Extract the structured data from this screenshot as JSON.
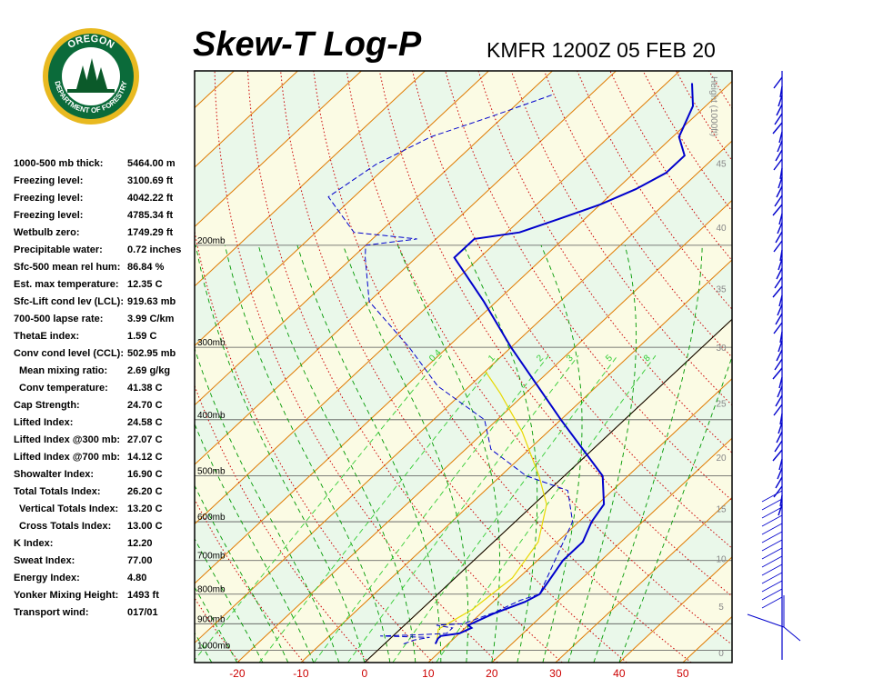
{
  "header": {
    "title": "Skew-T Log-P",
    "station": "KMFR 1200Z 05 FEB 20"
  },
  "logo": {
    "top_text": "OREGON",
    "bottom_text": "DEPARTMENT OF FORESTRY",
    "colors": {
      "ring": "#0b6b3a",
      "gold": "#e8b920",
      "trees": "#0b5a2a"
    }
  },
  "indices": [
    {
      "label": "1000-500 mb thick:",
      "value": "5464.00 m"
    },
    {
      "label": "Freezing level:",
      "value": "3100.69 ft"
    },
    {
      "label": "Freezing level:",
      "value": "4042.22 ft"
    },
    {
      "label": "Freezing level:",
      "value": "4785.34 ft"
    },
    {
      "label": "Wetbulb zero:",
      "value": "1749.29 ft"
    },
    {
      "label": "Precipitable water:",
      "value": "0.72 inches"
    },
    {
      "label": "Sfc-500 mean rel hum:",
      "value": "86.84 %"
    },
    {
      "label": "Est. max temperature:",
      "value": "12.35 C"
    },
    {
      "label": "Sfc-Lift cond lev (LCL):",
      "value": "919.63 mb"
    },
    {
      "label": "700-500 lapse rate:",
      "value": "3.99 C/km"
    },
    {
      "label": "ThetaE index:",
      "value": "1.59 C"
    },
    {
      "label": "Conv cond level (CCL):",
      "value": "502.95 mb"
    },
    {
      "label": "Mean mixing ratio:",
      "value": "2.69 g/kg",
      "indent": true
    },
    {
      "label": "Conv temperature:",
      "value": "41.38 C",
      "indent": true
    },
    {
      "label": "Cap Strength:",
      "value": "24.70 C"
    },
    {
      "label": "Lifted Index:",
      "value": "24.58 C"
    },
    {
      "label": "Lifted Index @300 mb:",
      "value": "27.07 C"
    },
    {
      "label": "Lifted Index @700 mb:",
      "value": "14.12 C"
    },
    {
      "label": "Showalter Index:",
      "value": "16.90 C"
    },
    {
      "label": "Total Totals Index:",
      "value": "26.20 C"
    },
    {
      "label": "Vertical Totals Index:",
      "value": "13.20 C",
      "indent": true
    },
    {
      "label": "Cross Totals Index:",
      "value": "13.00 C",
      "indent": true
    },
    {
      "label": "K Index:",
      "value": "12.20"
    },
    {
      "label": "Sweat Index:",
      "value": "77.00"
    },
    {
      "label": "Energy Index:",
      "value": "4.80"
    },
    {
      "label": "Yonker Mixing Height:",
      "value": "1493 ft"
    },
    {
      "label": "Transport wind:",
      "value": "017/01"
    }
  ],
  "chart_data": {
    "type": "skew-t",
    "x_range_c": [
      -30,
      57
    ],
    "p_range_mb": [
      1050,
      100
    ],
    "temperature_ticks": [
      -20,
      -10,
      0,
      10,
      20,
      30,
      40,
      50
    ],
    "pressure_labels": [
      {
        "p": 200,
        "label": "200mb"
      },
      {
        "p": 300,
        "label": "300mb"
      },
      {
        "p": 400,
        "label": "400mb"
      },
      {
        "p": 500,
        "label": "500mb"
      },
      {
        "p": 600,
        "label": "600mb"
      },
      {
        "p": 700,
        "label": "700mb"
      },
      {
        "p": 800,
        "label": "800mb"
      },
      {
        "p": 900,
        "label": "900mb"
      },
      {
        "p": 1000,
        "label": "1000mb"
      }
    ],
    "height_axis": {
      "title": "Height (1000ft)",
      "ticks": [
        0,
        5,
        10,
        15,
        20,
        25,
        30,
        35,
        40,
        45,
        50
      ]
    },
    "mixing_ratio_labels": [
      "0.4",
      "1",
      "2",
      "3",
      "5",
      "8"
    ],
    "mixing_ratios_gkg": [
      0.4,
      1,
      2,
      3,
      5,
      8
    ],
    "temperature_profile": [
      {
        "p": 975,
        "t": 8
      },
      {
        "p": 955,
        "t": 7.5
      },
      {
        "p": 945,
        "t": 7.5
      },
      {
        "p": 935,
        "t": 10
      },
      {
        "p": 915,
        "t": 11
      },
      {
        "p": 905,
        "t": 10
      },
      {
        "p": 865,
        "t": 12
      },
      {
        "p": 825,
        "t": 15
      },
      {
        "p": 800,
        "t": 16
      },
      {
        "p": 700,
        "t": 14
      },
      {
        "p": 650,
        "t": 14
      },
      {
        "p": 600,
        "t": 12
      },
      {
        "p": 560,
        "t": 11
      },
      {
        "p": 500,
        "t": 6
      },
      {
        "p": 400,
        "t": -10
      },
      {
        "p": 300,
        "t": -30
      },
      {
        "p": 250,
        "t": -42
      },
      {
        "p": 210,
        "t": -54
      },
      {
        "p": 200,
        "t": -54
      },
      {
        "p": 195,
        "t": -54
      },
      {
        "p": 190,
        "t": -48
      },
      {
        "p": 180,
        "t": -44
      },
      {
        "p": 170,
        "t": -40
      },
      {
        "p": 160,
        "t": -37
      },
      {
        "p": 150,
        "t": -35
      },
      {
        "p": 140,
        "t": -35
      },
      {
        "p": 130,
        "t": -39
      },
      {
        "p": 115,
        "t": -42
      },
      {
        "p": 105,
        "t": -46
      }
    ],
    "dewpoint_profile": [
      {
        "p": 975,
        "t": 3
      },
      {
        "p": 960,
        "t": 4
      },
      {
        "p": 950,
        "t": 6
      },
      {
        "p": 945,
        "t": -2
      },
      {
        "p": 940,
        "t": 4
      },
      {
        "p": 935,
        "t": 8
      },
      {
        "p": 915,
        "t": 8
      },
      {
        "p": 905,
        "t": 5
      },
      {
        "p": 900,
        "t": 9
      },
      {
        "p": 860,
        "t": 12
      },
      {
        "p": 820,
        "t": 14
      },
      {
        "p": 800,
        "t": 16
      },
      {
        "p": 600,
        "t": 9
      },
      {
        "p": 530,
        "t": 3
      },
      {
        "p": 500,
        "t": -6
      },
      {
        "p": 450,
        "t": -16
      },
      {
        "p": 400,
        "t": -22
      },
      {
        "p": 350,
        "t": -35
      },
      {
        "p": 300,
        "t": -46
      },
      {
        "p": 250,
        "t": -60
      },
      {
        "p": 210,
        "t": -68
      },
      {
        "p": 200,
        "t": -70
      },
      {
        "p": 195,
        "t": -63
      },
      {
        "p": 190,
        "t": -74
      },
      {
        "p": 165,
        "t": -84
      },
      {
        "p": 145,
        "t": -82
      },
      {
        "p": 130,
        "t": -78
      },
      {
        "p": 120,
        "t": -72
      },
      {
        "p": 110,
        "t": -66
      }
    ],
    "parcel_profile": [
      {
        "p": 970,
        "t": 8
      },
      {
        "p": 920,
        "t": 6
      },
      {
        "p": 850,
        "t": 8
      },
      {
        "p": 750,
        "t": 9
      },
      {
        "p": 650,
        "t": 7
      },
      {
        "p": 560,
        "t": 2
      },
      {
        "p": 500,
        "t": -4
      },
      {
        "p": 420,
        "t": -14
      },
      {
        "p": 360,
        "t": -24
      },
      {
        "p": 330,
        "t": -30
      }
    ],
    "colors": {
      "temperature": "#0000cc",
      "dewpoint": "#0000cc",
      "parcel": "#e8d800",
      "isotherm": "#e07a00",
      "dry_adiabat": "#cc0000",
      "moist_adiabat": "#009900",
      "mixing_ratio": "#33cc33",
      "band_green": "#eaf8ea",
      "band_yellow": "#fbfbe4",
      "tick_label": "#cc0000"
    }
  }
}
